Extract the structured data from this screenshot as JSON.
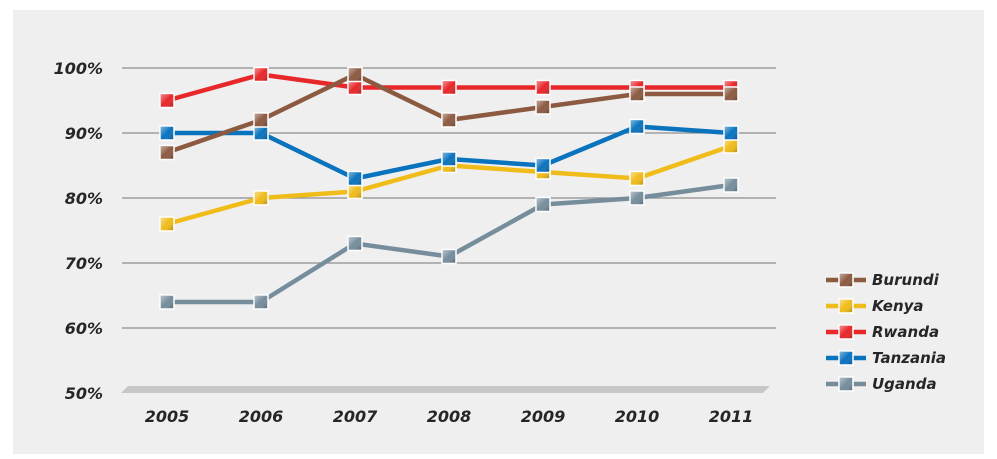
{
  "chart_data": {
    "type": "line",
    "x": [
      "2005",
      "2006",
      "2007",
      "2008",
      "2009",
      "2010",
      "2011"
    ],
    "ylim": [
      50,
      100
    ],
    "yticks": [
      50,
      60,
      70,
      80,
      90,
      100
    ],
    "y_tick_labels": [
      "50%",
      "60%",
      "70%",
      "80%",
      "90%",
      "100%"
    ],
    "grid": true,
    "legend_position": "right",
    "series": [
      {
        "name": "Burundi",
        "color": "#8c5a41",
        "values": [
          87,
          92,
          99,
          92,
          94,
          96,
          96
        ]
      },
      {
        "name": "Kenya",
        "color": "#f0bc1a",
        "values": [
          76,
          80,
          81,
          85,
          84,
          83,
          88
        ]
      },
      {
        "name": "Rwanda",
        "color": "#e8272a",
        "values": [
          95,
          99,
          97,
          97,
          97,
          97,
          97
        ]
      },
      {
        "name": "Tanzania",
        "color": "#0a73be",
        "values": [
          90,
          90,
          83,
          86,
          85,
          91,
          90
        ]
      },
      {
        "name": "Uganda",
        "color": "#768d9c",
        "values": [
          64,
          64,
          73,
          71,
          79,
          80,
          82
        ]
      }
    ]
  }
}
